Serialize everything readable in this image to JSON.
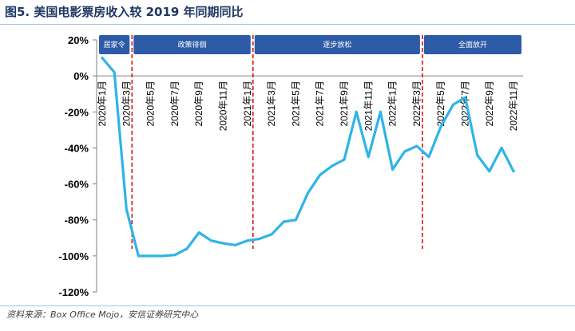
{
  "title": "图5. 美国电影票房收入较 2019 年同期同比",
  "source": "资料来源：Box Office Mojo，安信证券研究中心",
  "colors": {
    "line": "#2eb4e6",
    "phase_box": "#2e5ba8",
    "phase_divider": "#d9141b",
    "axis": "#808080",
    "text": "#000000"
  },
  "chart_data": {
    "type": "line",
    "title": "图5. 美国电影票房收入较 2019 年同期同比",
    "xlabel": "",
    "ylabel": "",
    "y_unit": "%",
    "ylim": [
      -120,
      20
    ],
    "y_ticks": [
      20,
      0,
      -20,
      -40,
      -60,
      -80,
      -100,
      -120
    ],
    "y_tick_labels": [
      "20%",
      "0%",
      "-20%",
      "-40%",
      "-60%",
      "-80%",
      "-100%",
      "-120%"
    ],
    "categories": [
      "2020年1月",
      "2020年2月",
      "2020年3月",
      "2020年4月",
      "2020年5月",
      "2020年6月",
      "2020年7月",
      "2020年8月",
      "2020年9月",
      "2020年10月",
      "2020年11月",
      "2020年12月",
      "2021年1月",
      "2021年2月",
      "2021年3月",
      "2021年4月",
      "2021年5月",
      "2021年6月",
      "2021年7月",
      "2021年8月",
      "2021年9月",
      "2021年10月",
      "2021年11月",
      "2021年12月",
      "2022年1月",
      "2022年2月",
      "2022年3月",
      "2022年4月",
      "2022年5月",
      "2022年6月",
      "2022年7月",
      "2022年8月",
      "2022年9月",
      "2022年10月",
      "2022年11月"
    ],
    "x_tick_labels": [
      "2020年1月",
      "2020年3月",
      "2020年5月",
      "2020年7月",
      "2020年9月",
      "2020年11月",
      "2021年1月",
      "2021年3月",
      "2021年5月",
      "2021年7月",
      "2021年9月",
      "2021年11月",
      "2022年1月",
      "2022年3月",
      "2022年5月",
      "2022年7月",
      "2022年9月",
      "2022年11月"
    ],
    "series": [
      {
        "name": "美国电影票房收入同比",
        "values": [
          10,
          2,
          -74,
          -100,
          -100,
          -100,
          -99.5,
          -96,
          -87,
          -91.5,
          -93,
          -94,
          -91.5,
          -90.5,
          -88,
          -81,
          -80,
          -65,
          -55,
          -50,
          -46.5,
          -20,
          -45,
          -20,
          -52,
          -42,
          -39,
          -45,
          -28,
          -16,
          -12,
          -44,
          -53,
          -40,
          -53
        ]
      }
    ],
    "phases": [
      {
        "label": "居家令",
        "start_index": 0,
        "end_index": 2
      },
      {
        "label": "政策徘徊",
        "start_index": 2,
        "end_index": 12
      },
      {
        "label": "逐步放松",
        "start_index": 12,
        "end_index": 26
      },
      {
        "label": "全面放开",
        "start_index": 26,
        "end_index": 34
      }
    ],
    "dividers_at_index": [
      2,
      12,
      26
    ],
    "grid": false,
    "legend": "none"
  }
}
